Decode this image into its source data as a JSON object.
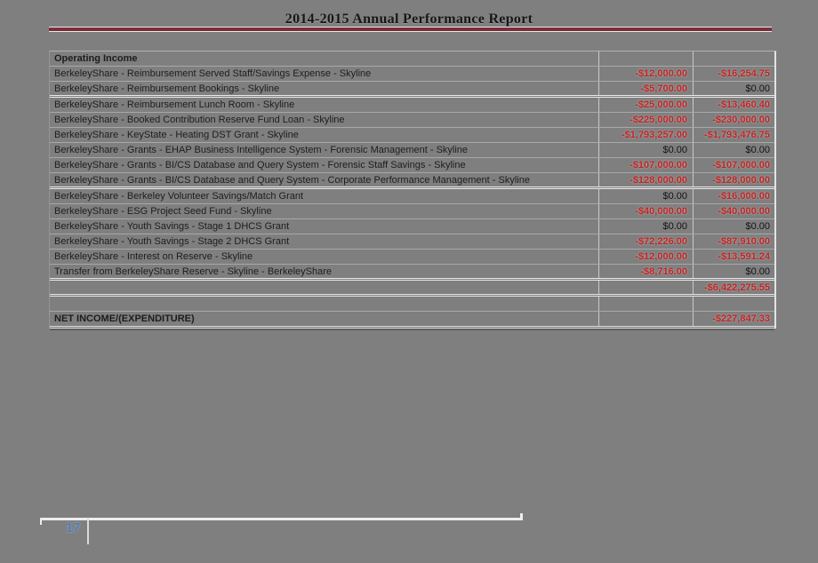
{
  "page": {
    "title": "2014-2015 Annual Performance Report",
    "page_number": "17",
    "background_color": "#7f7f7f",
    "accent_maroon": "#7a2e3a",
    "negative_amount_color": "#c42323",
    "page_number_color": "#4d7ec0"
  },
  "table": {
    "section_header": "Operating Income",
    "rows": [
      {
        "label": "BerkeleyShare - Reimbursement Served Staff/Savings Expense - Skyline",
        "budget": "-$12,000.00",
        "actual": "-$16,254.75",
        "section_end": false
      },
      {
        "label": "BerkeleyShare - Reimbursement Bookings - Skyline",
        "budget": "-$5,700.00",
        "actual": "$0.00",
        "section_end": true
      },
      {
        "label": "BerkeleyShare - Reimbursement Lunch Room - Skyline",
        "budget": "-$25,000.00",
        "actual": "-$13,460.40",
        "section_end": false
      },
      {
        "label": "BerkeleyShare - Booked Contribution Reserve Fund Loan - Skyline",
        "budget": "-$225,000.00",
        "actual": "-$230,000.00",
        "section_end": false
      },
      {
        "label": "BerkeleyShare - KeyState - Heating DST Grant - Skyline",
        "budget": "-$1,793,257.00",
        "actual": "-$1,793,476.75",
        "section_end": false
      },
      {
        "label": "BerkeleyShare - Grants - EHAP Business Intelligence System - Forensic Management - Skyline",
        "budget": "$0.00",
        "actual": "$0.00",
        "section_end": false
      },
      {
        "label": "BerkeleyShare - Grants - BI/CS Database and Query System - Forensic Staff Savings - Skyline",
        "budget": "-$107,000.00",
        "actual": "-$107,000.00",
        "section_end": false
      },
      {
        "label": "BerkeleyShare - Grants - BI/CS Database and Query System - Corporate Performance Management - Skyline",
        "budget": "-$128,000.00",
        "actual": "-$128,000.00",
        "section_end": true
      },
      {
        "label": "BerkeleyShare - Berkeley Volunteer Savings/Match Grant",
        "budget": "$0.00",
        "actual": "-$16,000.00",
        "section_end": false
      },
      {
        "label": "BerkeleyShare - ESG Project Seed Fund - Skyline",
        "budget": "-$40,000.00",
        "actual": "-$40,000.00",
        "section_end": false
      },
      {
        "label": "BerkeleyShare - Youth Savings - Stage 1 DHCS Grant",
        "budget": "$0.00",
        "actual": "$0.00",
        "section_end": false
      },
      {
        "label": "BerkeleyShare - Youth Savings - Stage 2 DHCS Grant",
        "budget": "-$72,226.00",
        "actual": "-$87,910.00",
        "section_end": false
      },
      {
        "label": "BerkeleyShare - Interest on Reserve - Skyline",
        "budget": "-$12,000.00",
        "actual": "-$13,591.24",
        "section_end": false
      },
      {
        "label": "Transfer from BerkeleyShare Reserve - Skyline - BerkeleyShare",
        "budget": "-$8,716.00",
        "actual": "$0.00",
        "section_end": true
      }
    ],
    "total_row": {
      "label": "",
      "budget": "",
      "actual": "-$6,422,275.55"
    },
    "spacer_row": {
      "label": "",
      "budget": "",
      "actual": ""
    },
    "net_row": {
      "label": "NET INCOME/(EXPENDITURE)",
      "budget": "",
      "actual": "-$227,847.33"
    }
  }
}
